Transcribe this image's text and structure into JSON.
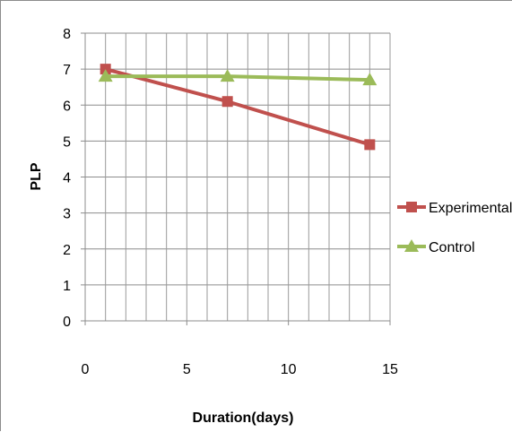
{
  "chart_data": {
    "type": "line",
    "xlabel": "Duration(days)",
    "ylabel": "PLP",
    "xlim": [
      0,
      15
    ],
    "ylim": [
      0,
      8
    ],
    "xticks": [
      0,
      5,
      10,
      15
    ],
    "yticks": [
      0,
      1,
      2,
      3,
      4,
      5,
      6,
      7,
      8
    ],
    "grid": true,
    "legend_position": "right",
    "series": [
      {
        "name": "Experimental",
        "color": "#c0504d",
        "marker": "square",
        "x": [
          1,
          7,
          14
        ],
        "y": [
          7.0,
          6.1,
          4.9
        ]
      },
      {
        "name": "Control",
        "color": "#9bbb59",
        "marker": "triangle",
        "x": [
          1,
          7,
          14
        ],
        "y": [
          6.8,
          6.8,
          6.7
        ]
      }
    ]
  }
}
